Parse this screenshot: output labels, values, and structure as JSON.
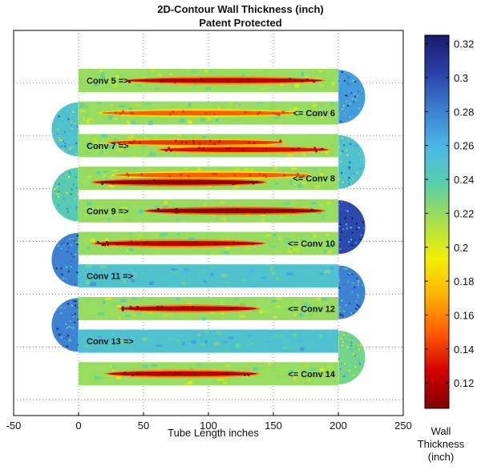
{
  "header": {
    "title": "2D-Contour Wall Thickness (inch)",
    "subtitle": "Patent Protected"
  },
  "chart_data": {
    "type": "heatmap",
    "title": "2D-Contour Wall Thickness (inch)",
    "subtitle": "Patent Protected",
    "xlabel": "Tube Length inches",
    "xlim": [
      -50,
      250
    ],
    "x_ticks": [
      -50,
      0,
      50,
      100,
      150,
      200,
      250
    ],
    "grid": true,
    "colorbar": {
      "label_line1": "Wall",
      "label_line2": "Thickness",
      "label_line3": "(inch)",
      "range": [
        0.105,
        0.325
      ],
      "ticks": [
        0.12,
        0.14,
        0.16,
        0.18,
        0.2,
        0.22,
        0.24,
        0.26,
        0.28,
        0.3,
        0.32
      ],
      "colormap": "jet-reversed",
      "colors": [
        "#7f0000",
        "#d40000",
        "#ff5a00",
        "#ffb000",
        "#f2f000",
        "#a8e04a",
        "#58d0a8",
        "#4ab8e8",
        "#3c80d0",
        "#2a40a8",
        "#1a1a6e"
      ]
    },
    "passes": [
      {
        "label": "Conv 5 =>",
        "direction": "right",
        "base": 0.22,
        "bends": [
          {
            "side": "right",
            "value": 0.27
          }
        ],
        "thin": [
          {
            "x": [
              35,
              190
            ],
            "value": 0.12
          }
        ]
      },
      {
        "label": "<= Conv 6",
        "direction": "left",
        "base": 0.22,
        "bends": [
          {
            "side": "left",
            "value": 0.25
          }
        ],
        "thin": [
          {
            "x": [
              15,
              170
            ],
            "value": 0.15
          }
        ]
      },
      {
        "label": "Conv 7 =>",
        "direction": "right",
        "base": 0.22,
        "bends": [
          {
            "side": "right",
            "value": 0.25
          }
        ],
        "thin": [
          {
            "x": [
              20,
              160
            ],
            "value": 0.14
          },
          {
            "x": [
              60,
              195
            ],
            "value": 0.13
          }
        ]
      },
      {
        "label": "<= Conv 8",
        "direction": "left",
        "base": 0.22,
        "bends": [
          {
            "side": "left",
            "value": 0.24
          }
        ],
        "thin": [
          {
            "x": [
              25,
              180
            ],
            "value": 0.15
          },
          {
            "x": [
              10,
              145
            ],
            "value": 0.11
          }
        ]
      },
      {
        "label": "Conv 9 =>",
        "direction": "right",
        "base": 0.22,
        "bends": [
          {
            "side": "right",
            "value": 0.3
          }
        ],
        "thin": [
          {
            "x": [
              50,
              190
            ],
            "value": 0.11
          }
        ]
      },
      {
        "label": "<= Conv 10",
        "direction": "left",
        "base": 0.22,
        "bends": [
          {
            "side": "left",
            "value": 0.28
          }
        ],
        "thin": [
          {
            "x": [
              10,
              145
            ],
            "value": 0.12
          }
        ]
      },
      {
        "label": "Conv 11 =>",
        "direction": "right",
        "base": 0.25,
        "bends": [
          {
            "side": "right",
            "value": 0.28
          }
        ],
        "thin": []
      },
      {
        "label": "<= Conv 12",
        "direction": "left",
        "base": 0.22,
        "bends": [
          {
            "side": "left",
            "value": 0.28
          }
        ],
        "thin": [
          {
            "x": [
              30,
              140
            ],
            "value": 0.12
          }
        ]
      },
      {
        "label": "Conv 13 =>",
        "direction": "right",
        "base": 0.25,
        "bends": [
          {
            "side": "right",
            "value": 0.23
          }
        ],
        "thin": []
      },
      {
        "label": "<= Conv 14",
        "direction": "left",
        "base": 0.22,
        "bends": [],
        "thin": [
          {
            "x": [
              20,
              140
            ],
            "value": 0.12
          }
        ]
      }
    ]
  }
}
